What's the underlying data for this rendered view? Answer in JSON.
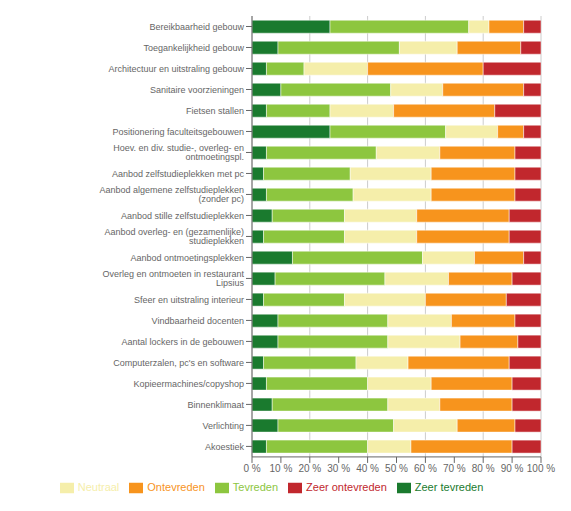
{
  "chart_data": {
    "type": "bar",
    "orientation": "horizontal",
    "stacked": true,
    "grid": true,
    "legend": "bottom",
    "categories": [
      "Bereikbaarheid gebouw",
      "Toegankelijkheid gebouw",
      "Architectuur en uitstraling gebouw",
      "Sanitaire voorzieningen",
      "Fietsen stallen",
      "Positionering faculteitsgebouwen",
      "Hoev. en div. studie-, overleg- en ontmoetingspl.",
      "Aanbod zelfstudieplekken met pc",
      "Aanbod algemene zelfstudieplekken (zonder pc)",
      "Aanbod stille zelfstudieplekken",
      "Aanbod overleg- en (gezamenlijke) studieplekken",
      "Aanbod ontmoetingsplekken",
      "Overleg en ontmoeten in restaurant Lipsius",
      "Sfeer en uitstraling interieur",
      "Vindbaarheid docenten",
      "Aantal lockers in de gebouwen",
      "Computerzalen, pc's en software",
      "Kopieermachines/copyshop",
      "Binnenklimaat",
      "Verlichting",
      "Akoestiek"
    ],
    "series": [
      {
        "name": "Zeer tevreden",
        "color": "#1a7a2e",
        "values": [
          27,
          9,
          5,
          10,
          5,
          27,
          5,
          4,
          5,
          7,
          4,
          14,
          8,
          4,
          9,
          9,
          4,
          5,
          7,
          9,
          5
        ]
      },
      {
        "name": "Tevreden",
        "color": "#8dc63f",
        "values": [
          48,
          42,
          13,
          38,
          22,
          40,
          38,
          30,
          30,
          25,
          28,
          45,
          38,
          28,
          38,
          38,
          32,
          35,
          40,
          40,
          35
        ]
      },
      {
        "name": "Neutraal",
        "color": "#f5eeaa",
        "values": [
          7,
          20,
          22,
          18,
          22,
          18,
          22,
          28,
          27,
          25,
          25,
          18,
          22,
          28,
          22,
          25,
          18,
          22,
          18,
          22,
          15
        ]
      },
      {
        "name": "Ontevreden",
        "color": "#f7941d",
        "values": [
          12,
          22,
          40,
          28,
          35,
          9,
          26,
          29,
          29,
          32,
          32,
          17,
          22,
          28,
          22,
          20,
          35,
          28,
          25,
          20,
          35
        ]
      },
      {
        "name": "Zeer ontevreden",
        "color": "#c1272d",
        "values": [
          6,
          7,
          20,
          6,
          16,
          6,
          9,
          9,
          9,
          11,
          11,
          6,
          10,
          12,
          9,
          8,
          11,
          10,
          10,
          9,
          10
        ]
      }
    ],
    "xlim": [
      0,
      100
    ],
    "xticks": [
      {
        "value": 0,
        "label": "0 %"
      },
      {
        "value": 10,
        "label": "10 %"
      },
      {
        "value": 20,
        "label": "20 %"
      },
      {
        "value": 30,
        "label": "30 %"
      },
      {
        "value": 40,
        "label": "40 %"
      },
      {
        "value": 50,
        "label": "50 %"
      },
      {
        "value": 60,
        "label": "60 %"
      },
      {
        "value": 70,
        "label": "70 %"
      },
      {
        "value": 80,
        "label": "80 %"
      },
      {
        "value": 90,
        "label": "90 %"
      },
      {
        "value": 100,
        "label": "100 %"
      }
    ]
  }
}
